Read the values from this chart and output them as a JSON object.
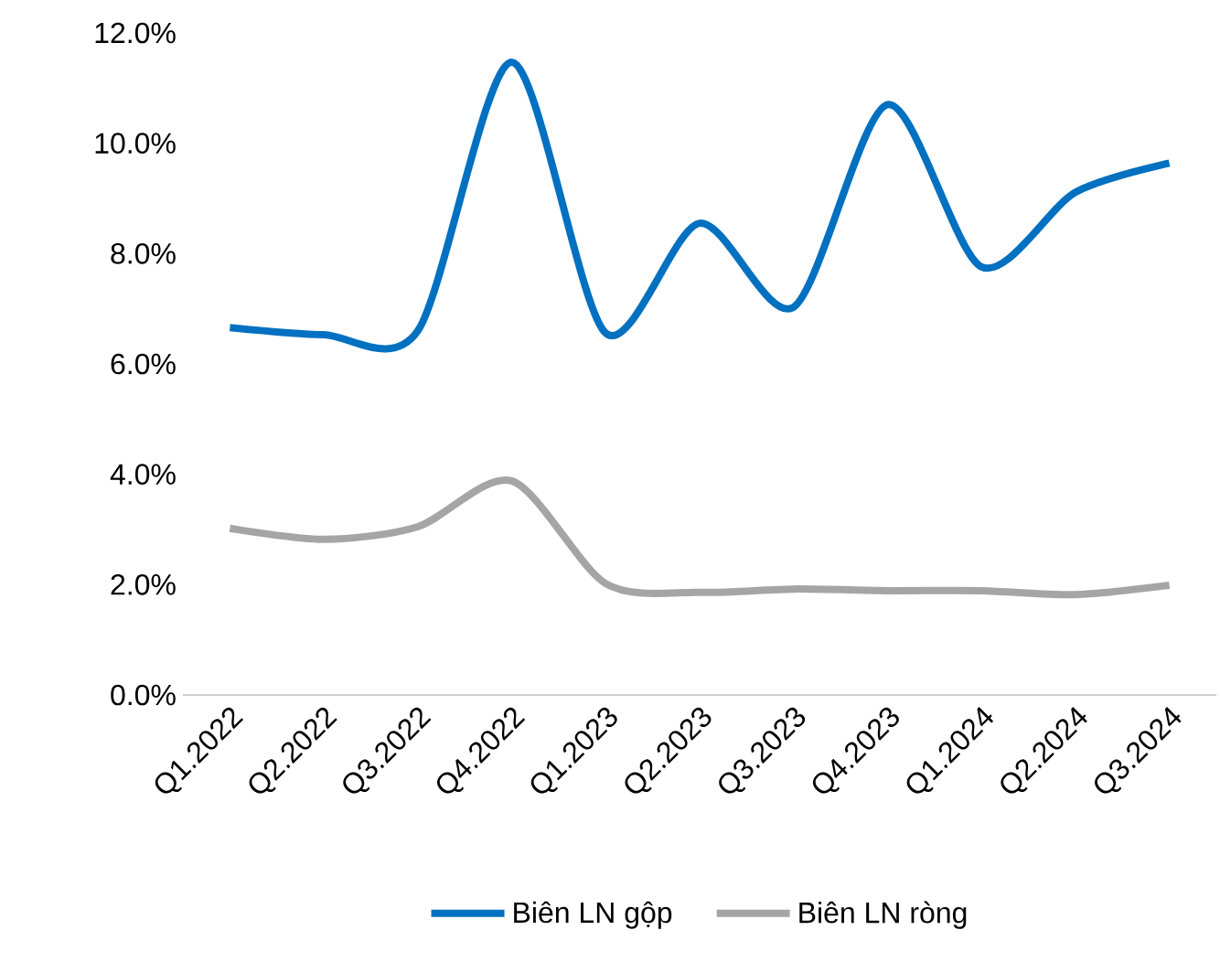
{
  "chart_data": {
    "type": "line",
    "categories": [
      "Q1.2022",
      "Q2.2022",
      "Q3.2022",
      "Q4.2022",
      "Q1.2023",
      "Q2.2023",
      "Q3.2023",
      "Q4.2023",
      "Q1.2024",
      "Q2.2024",
      "Q3.2024"
    ],
    "series": [
      {
        "name": "Biên LN gộp",
        "color": "#0070c0",
        "values": [
          6.66,
          6.53,
          6.6,
          11.47,
          6.56,
          8.55,
          7.03,
          10.7,
          7.76,
          9.11,
          9.64
        ]
      },
      {
        "name": "Biên LN ròng",
        "color": "#a5a5a5",
        "values": [
          3.02,
          2.82,
          3.05,
          3.88,
          2.02,
          1.86,
          1.92,
          1.89,
          1.89,
          1.82,
          1.99
        ]
      }
    ],
    "ylim": [
      0,
      12
    ],
    "yticks": [
      {
        "value": 0,
        "label": "0.0%"
      },
      {
        "value": 2,
        "label": "2.0%"
      },
      {
        "value": 4,
        "label": "4.0%"
      },
      {
        "value": 6,
        "label": "6.0%"
      },
      {
        "value": 8,
        "label": "8.0%"
      },
      {
        "value": 10,
        "label": "10.0%"
      },
      {
        "value": 12,
        "label": "12.0%"
      }
    ],
    "grid": false,
    "legend": "bottom",
    "marker": "none",
    "line_style": "solid"
  }
}
